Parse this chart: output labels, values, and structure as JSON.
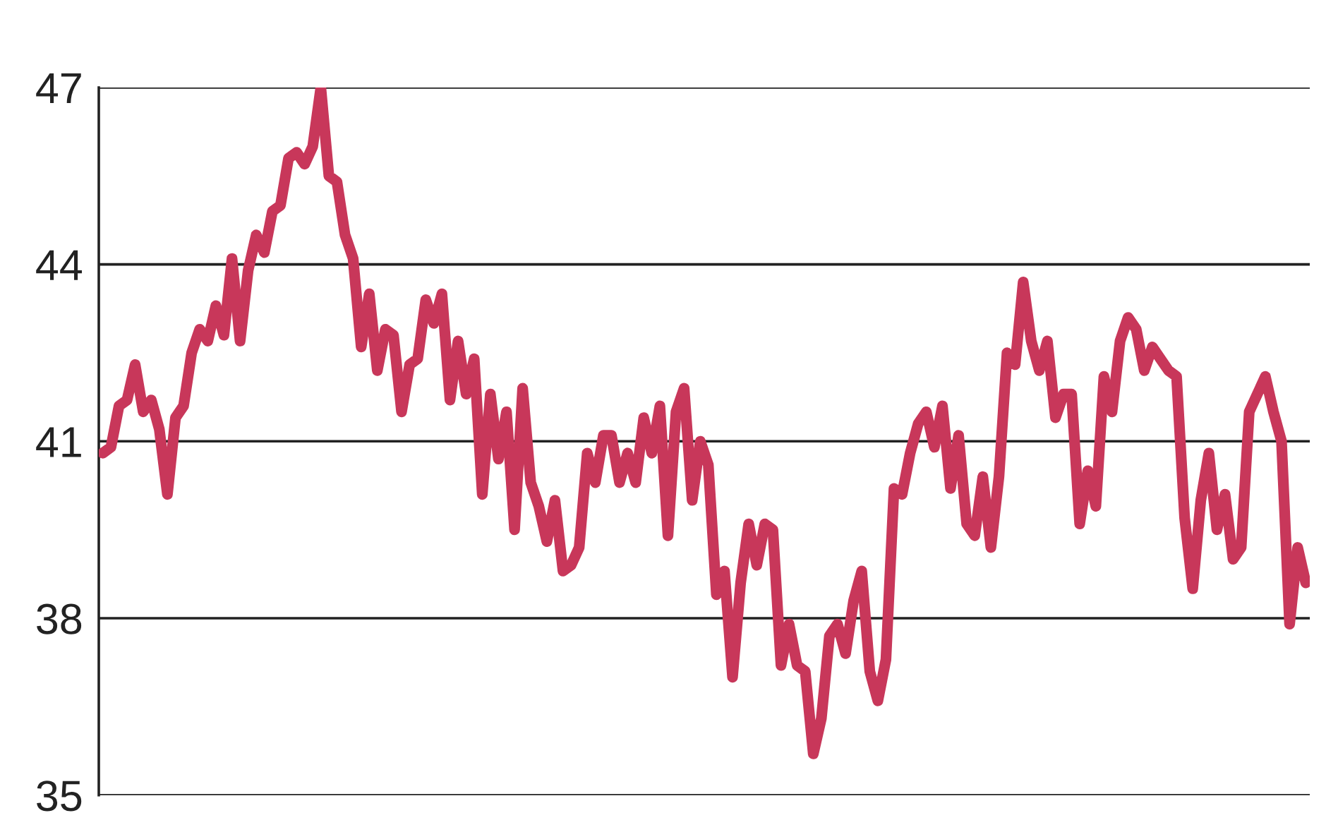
{
  "chart_data": {
    "type": "line",
    "categories": [
      null,
      null,
      null,
      null,
      null,
      null,
      null,
      null,
      null,
      null,
      null,
      null,
      null,
      null,
      null,
      null,
      null,
      null,
      null,
      null,
      null,
      null,
      null,
      null,
      null,
      null,
      null,
      null,
      null,
      null,
      null,
      null,
      null,
      null,
      null,
      null,
      null,
      null,
      null,
      null,
      null,
      null,
      null,
      null,
      null,
      null,
      null,
      null,
      null,
      null,
      null,
      null,
      null,
      null,
      null,
      null,
      null,
      null,
      null,
      null,
      null,
      null,
      null,
      null,
      null,
      null,
      null,
      null,
      null,
      null,
      null,
      null,
      null,
      null,
      null,
      null,
      null,
      null,
      null,
      null,
      null,
      null,
      null,
      null,
      null,
      null,
      null,
      null,
      null,
      null,
      null,
      null,
      null,
      null,
      null,
      null,
      null,
      null,
      null,
      null,
      null,
      null,
      null,
      null,
      null,
      null,
      null,
      null,
      null,
      null,
      null,
      null,
      null,
      null,
      null,
      null,
      null,
      null,
      null,
      null,
      null,
      null,
      null,
      null,
      null,
      null,
      null,
      null,
      null,
      null,
      null,
      null,
      null,
      null,
      null,
      null,
      null,
      null,
      null,
      null,
      null,
      null,
      null,
      null,
      null,
      null,
      null,
      null,
      null,
      null
    ],
    "series": [
      {
        "color": "#c8375a",
        "values": [
          40.8,
          40.9,
          41.6,
          41.7,
          42.3,
          41.5,
          41.7,
          41.2,
          40.1,
          41.4,
          41.6,
          42.5,
          42.9,
          42.7,
          43.3,
          42.8,
          44.1,
          42.7,
          43.9,
          44.5,
          44.2,
          44.9,
          45.0,
          45.8,
          45.9,
          45.7,
          46.0,
          47.0,
          45.5,
          45.4,
          44.5,
          44.1,
          42.6,
          43.5,
          42.2,
          42.9,
          42.8,
          41.5,
          42.3,
          42.4,
          43.4,
          43.0,
          43.5,
          41.7,
          42.7,
          41.8,
          42.4,
          40.1,
          41.8,
          40.7,
          41.5,
          39.5,
          41.9,
          40.3,
          39.9,
          39.3,
          40.0,
          38.8,
          38.9,
          39.2,
          40.8,
          40.3,
          41.1,
          41.1,
          40.3,
          40.8,
          40.3,
          41.4,
          40.8,
          41.6,
          39.4,
          41.5,
          41.9,
          40.0,
          41.0,
          40.6,
          38.4,
          38.8,
          37.0,
          38.6,
          39.6,
          38.9,
          39.6,
          39.5,
          37.2,
          37.9,
          37.2,
          37.1,
          35.7,
          36.3,
          37.7,
          37.9,
          37.4,
          38.3,
          38.8,
          37.1,
          36.6,
          37.3,
          40.2,
          40.1,
          40.8,
          41.3,
          41.5,
          40.9,
          41.6,
          40.2,
          41.1,
          39.6,
          39.4,
          40.4,
          39.2,
          40.4,
          42.5,
          42.3,
          43.7,
          42.7,
          42.2,
          42.7,
          41.4,
          41.8,
          41.8,
          39.6,
          40.5,
          39.9,
          42.1,
          41.5,
          42.7,
          43.1,
          42.9,
          42.2,
          42.6,
          42.4,
          42.2,
          42.1,
          39.7,
          38.5,
          40.0,
          40.8,
          39.5,
          40.1,
          39.0,
          39.2,
          41.5,
          41.8,
          42.1,
          41.5,
          41.0,
          37.9,
          39.2,
          38.6
        ]
      }
    ],
    "ylim": [
      35,
      47
    ],
    "yticks": [
      35,
      38,
      41,
      44,
      47
    ],
    "grid": "y",
    "tick_labels": "y",
    "line_style": "solid",
    "marker": "none"
  }
}
